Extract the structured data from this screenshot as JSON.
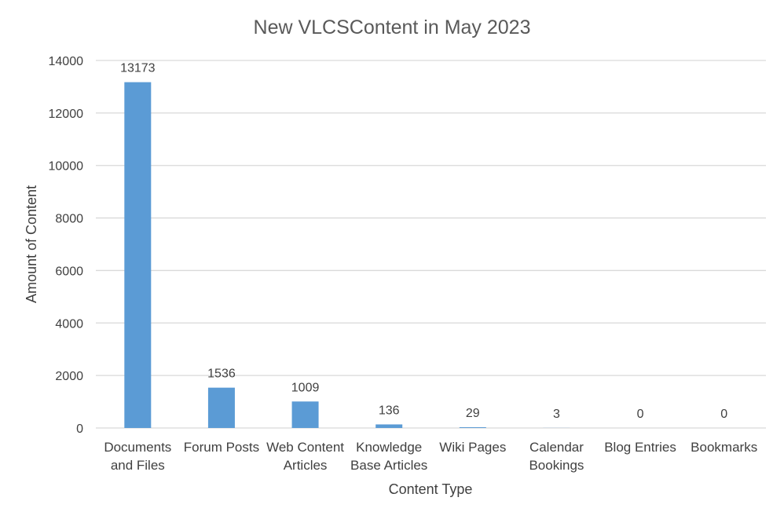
{
  "chart_data": {
    "type": "bar",
    "title": "New VLCSContent in May 2023",
    "xlabel": "Content Type",
    "ylabel": "Amount of Content",
    "categories": [
      [
        "Documents",
        "and Files"
      ],
      [
        "Forum Posts"
      ],
      [
        "Web Content",
        "Articles"
      ],
      [
        "Knowledge",
        "Base Articles"
      ],
      [
        "Wiki Pages"
      ],
      [
        "Calendar",
        "Bookings"
      ],
      [
        "Blog Entries"
      ],
      [
        "Bookmarks"
      ]
    ],
    "values": [
      13173,
      1536,
      1009,
      136,
      29,
      3,
      0,
      0
    ],
    "data_labels": [
      "13173",
      "1536",
      "1009",
      "136",
      "29",
      "3",
      "0",
      "0"
    ],
    "ylim": [
      0,
      14000
    ],
    "yticks": [
      0,
      2000,
      4000,
      6000,
      8000,
      10000,
      12000,
      14000
    ],
    "grid": true,
    "legend": "none",
    "colors": {
      "bar": "#5b9bd5",
      "grid": "#d9d9d9",
      "text": "#404040",
      "title": "#595959"
    }
  }
}
